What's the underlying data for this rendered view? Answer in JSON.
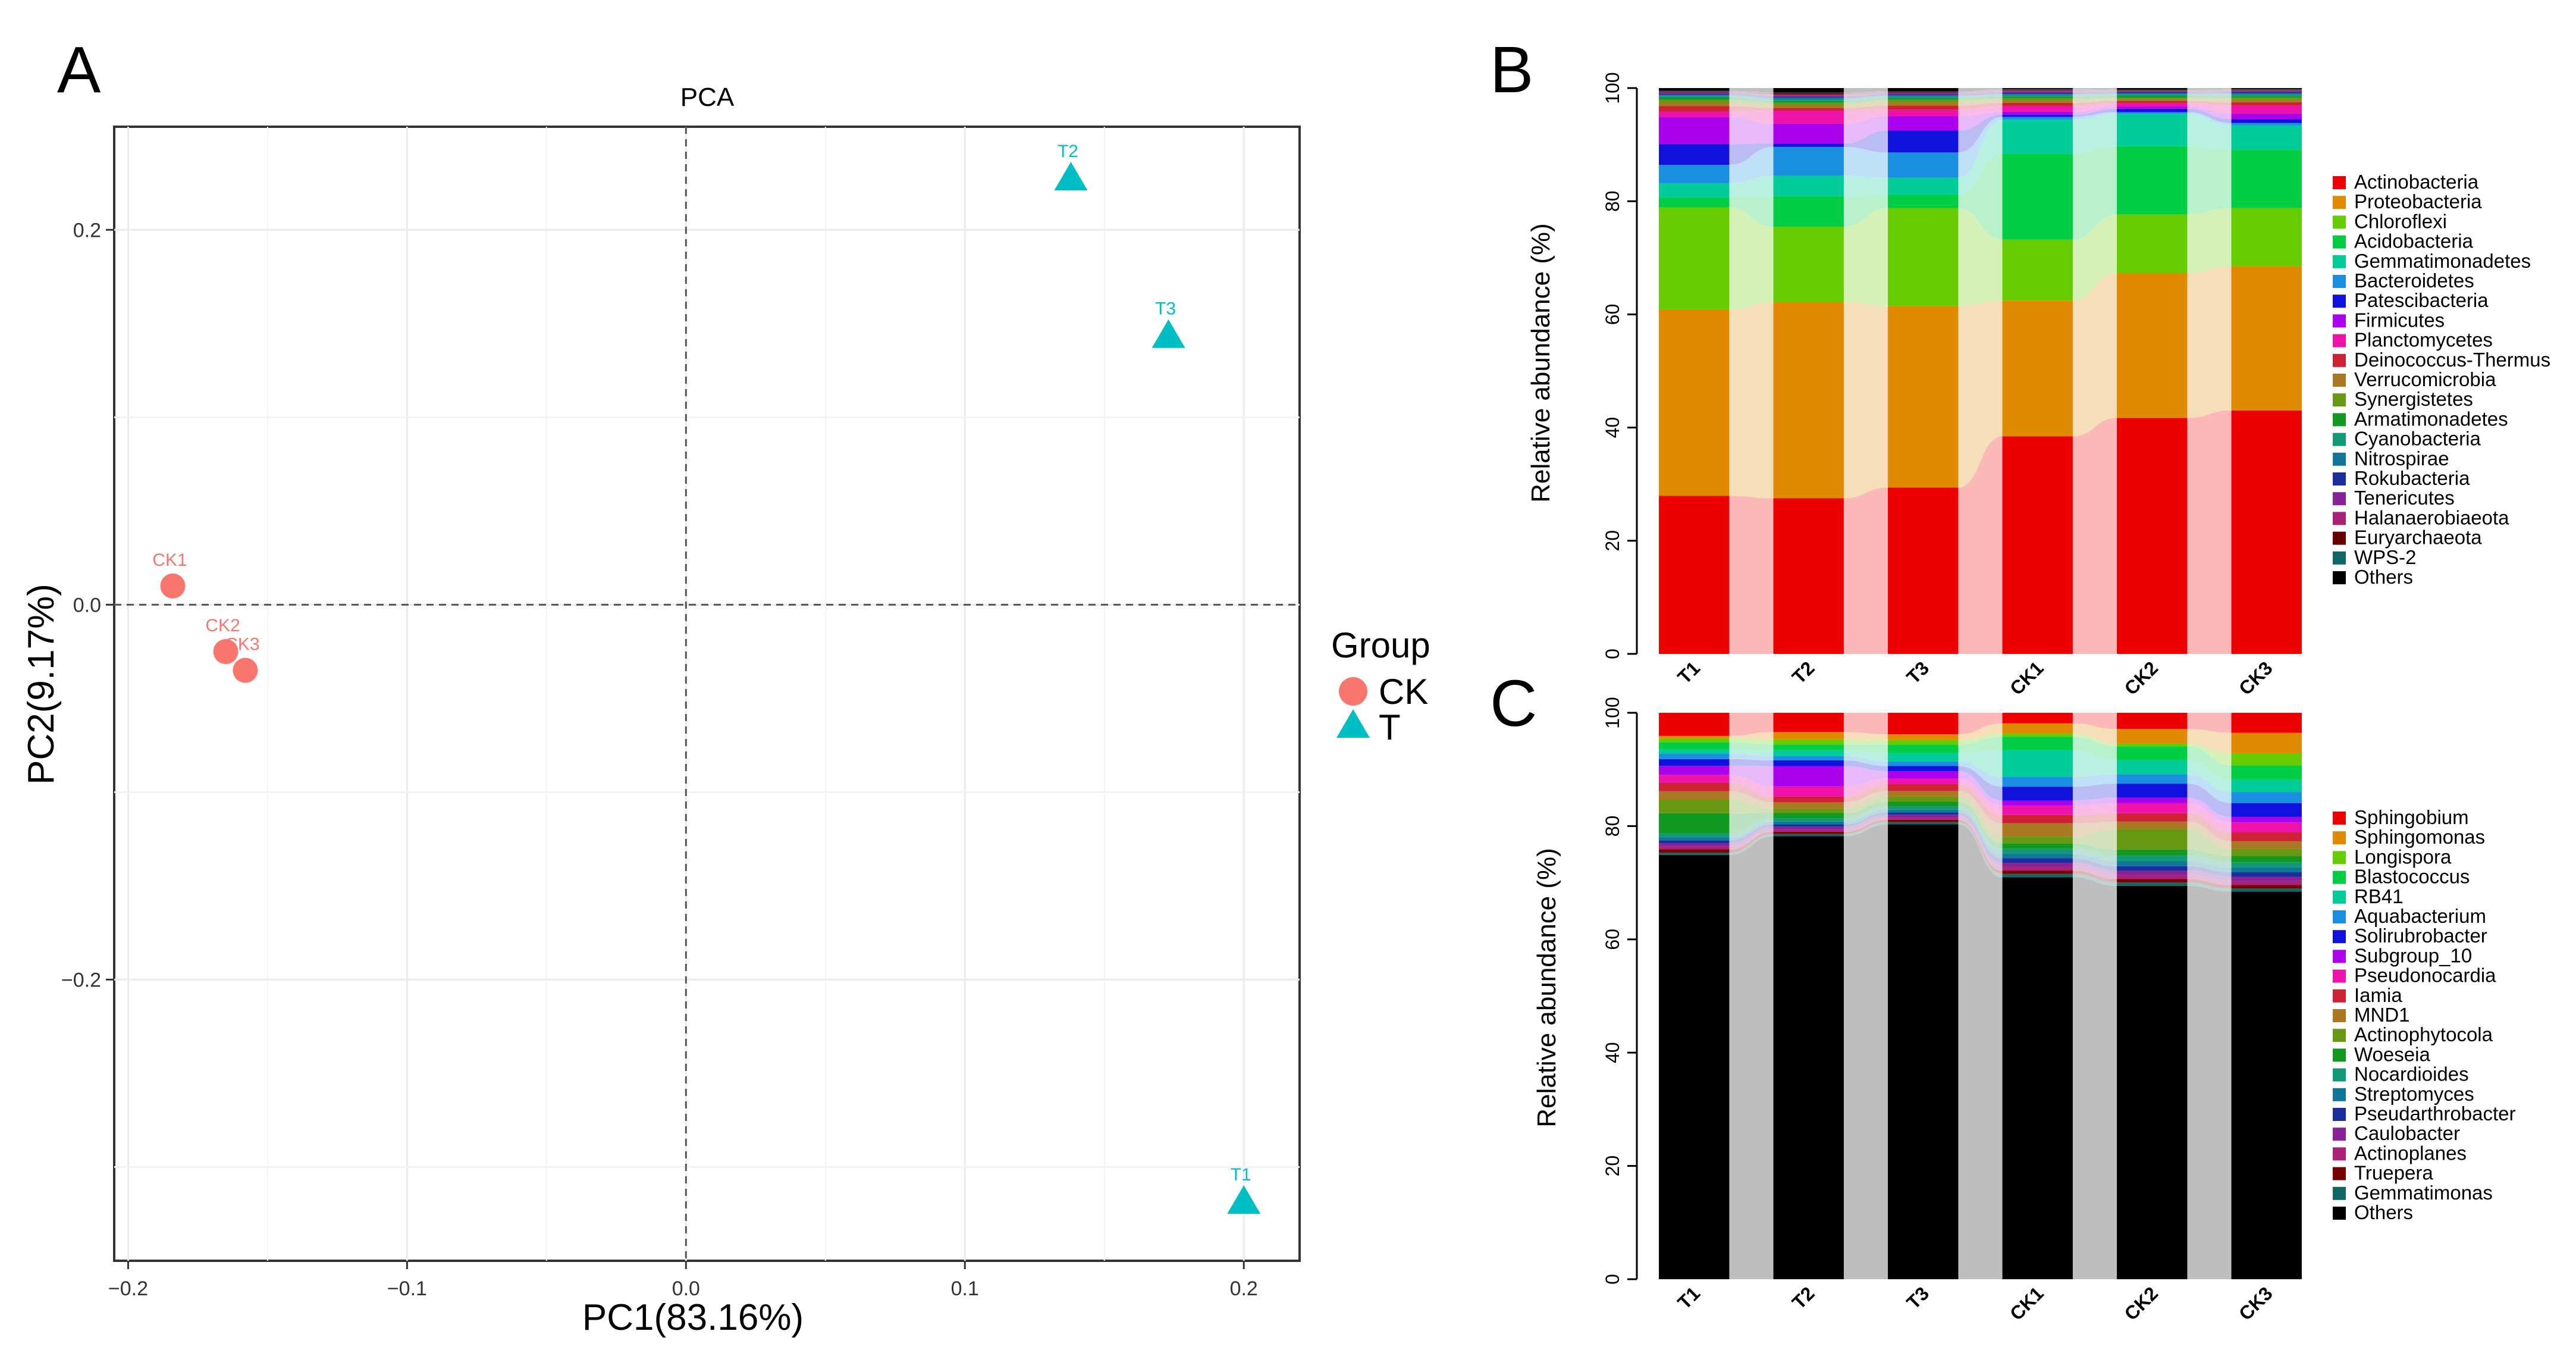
{
  "panel_labels": {
    "a": "A",
    "b": "B",
    "c": "C"
  },
  "chart_data": [
    {
      "type": "scatter",
      "panel": "A",
      "title": "PCA",
      "xlabel": "PC1(83.16%)",
      "ylabel": "PC2(9.17%)",
      "xlim": [
        -0.205,
        0.22
      ],
      "ylim": [
        -0.35,
        0.255
      ],
      "xticks": [
        -0.2,
        -0.1,
        0.0,
        0.1,
        0.2
      ],
      "xtick_labels": [
        "-0.2",
        "-0.1",
        "0.0",
        "0.1",
        "0.2"
      ],
      "yticks": [
        -0.2,
        0.0,
        0.2
      ],
      "ytick_labels": [
        "-0.2",
        "0.0",
        "0.2"
      ],
      "grid": true,
      "zero_lines": true,
      "legend_title": "Group",
      "legend": [
        {
          "label": "CK",
          "color": "#f8766d",
          "shape": "circle"
        },
        {
          "label": "T",
          "color": "#00bfc4",
          "shape": "triangle"
        }
      ],
      "points": [
        {
          "label": "CK1",
          "group": "CK",
          "x": -0.184,
          "y": 0.01
        },
        {
          "label": "CK2",
          "group": "CK",
          "x": -0.165,
          "y": -0.025
        },
        {
          "label": "CK3",
          "group": "CK",
          "x": -0.158,
          "y": -0.035
        },
        {
          "label": "T2",
          "group": "T",
          "x": 0.138,
          "y": 0.228
        },
        {
          "label": "T3",
          "group": "T",
          "x": 0.173,
          "y": 0.144
        },
        {
          "label": "T1",
          "group": "T",
          "x": 0.2,
          "y": -0.318
        }
      ]
    },
    {
      "type": "bar",
      "stacked": true,
      "panel": "B",
      "ylabel": "Relative abundance (%)",
      "ylim": [
        0,
        100
      ],
      "yticks": [
        0,
        20,
        40,
        60,
        80,
        100
      ],
      "ytick_labels": [
        "0",
        "20",
        "40",
        "60",
        "80",
        "100"
      ],
      "categories": [
        "T1",
        "T2",
        "T3",
        "CK1",
        "CK2",
        "CK3"
      ],
      "series": [
        {
          "name": "Actinobacteria",
          "color": "#ee0000",
          "values": [
            28.2,
            27.5,
            29.7,
            38.5,
            42.2,
            43.2
          ]
        },
        {
          "name": "Proteobacteria",
          "color": "#e08a00",
          "values": [
            33.3,
            34.7,
            32.4,
            24.0,
            25.9,
            25.6
          ]
        },
        {
          "name": "Chloroflexi",
          "color": "#66cc00",
          "values": [
            18.2,
            13.3,
            17.5,
            10.8,
            10.5,
            10.3
          ]
        },
        {
          "name": "Acidobacteria",
          "color": "#00cc44",
          "values": [
            1.8,
            5.4,
            2.4,
            15.2,
            12.2,
            10.4
          ]
        },
        {
          "name": "Gemmatimonadetes",
          "color": "#00cc99",
          "values": [
            2.5,
            3.6,
            3.0,
            6.0,
            5.8,
            4.3
          ]
        },
        {
          "name": "Bacteroidetes",
          "color": "#1a8fe0",
          "values": [
            3.3,
            5.1,
            4.5,
            0.5,
            0.3,
            0.4
          ]
        },
        {
          "name": "Patescibacteria",
          "color": "#1111dd",
          "values": [
            3.7,
            0.6,
            3.9,
            0.4,
            0.6,
            0.7
          ]
        },
        {
          "name": "Firmicutes",
          "color": "#aa00ee",
          "values": [
            4.8,
            3.5,
            2.6,
            0.5,
            0.4,
            1.0
          ]
        },
        {
          "name": "Planctomycetes",
          "color": "#ee11aa",
          "values": [
            1.0,
            2.3,
            1.1,
            1.0,
            0.6,
            1.4
          ]
        },
        {
          "name": "Deinococcus-Thermus",
          "color": "#cc2233",
          "values": [
            1.0,
            0.5,
            0.8,
            0.6,
            0.4,
            0.6
          ]
        },
        {
          "name": "Verrucomicrobia",
          "color": "#aa7722",
          "values": [
            0.6,
            0.5,
            0.6,
            0.4,
            0.3,
            0.4
          ]
        },
        {
          "name": "Synergistetes",
          "color": "#669911",
          "values": [
            0.5,
            0.4,
            0.4,
            0.4,
            0.3,
            0.4
          ]
        },
        {
          "name": "Armatimonadetes",
          "color": "#119922",
          "values": [
            0.4,
            0.3,
            0.3,
            0.3,
            0.3,
            0.3
          ]
        },
        {
          "name": "Cyanobacteria",
          "color": "#119977",
          "values": [
            0.3,
            0.3,
            0.3,
            0.3,
            0.3,
            0.3
          ]
        },
        {
          "name": "Nitrospirae",
          "color": "#117799",
          "values": [
            0.2,
            0.3,
            0.2,
            0.2,
            0.2,
            0.2
          ]
        },
        {
          "name": "Rokubacteria",
          "color": "#1a2f9c",
          "values": [
            0.2,
            0.2,
            0.2,
            0.2,
            0.2,
            0.2
          ]
        },
        {
          "name": "Tenericutes",
          "color": "#882299",
          "values": [
            0.2,
            0.2,
            0.2,
            0.2,
            0.1,
            0.2
          ]
        },
        {
          "name": "Halanaerobiaeota",
          "color": "#aa2277",
          "values": [
            0.1,
            0.2,
            0.1,
            0.2,
            0.1,
            0.1
          ]
        },
        {
          "name": "Euryarchaeota",
          "color": "#660000",
          "values": [
            0.1,
            0.2,
            0.1,
            0.1,
            0.1,
            0.1
          ]
        },
        {
          "name": "WPS-2",
          "color": "#116666",
          "values": [
            0.1,
            0.1,
            0.1,
            0.1,
            0.1,
            0.1
          ]
        },
        {
          "name": "Others",
          "color": "#000000",
          "values": [
            0.5,
            0.8,
            0.6,
            0.2,
            0.3,
            0.2
          ]
        }
      ]
    },
    {
      "type": "bar",
      "stacked": true,
      "panel": "C",
      "ylabel": "Relative abundance (%)",
      "ylim": [
        0,
        100
      ],
      "yticks": [
        0,
        20,
        40,
        60,
        80,
        100
      ],
      "ytick_labels": [
        "0",
        "20",
        "40",
        "60",
        "80",
        "100"
      ],
      "categories": [
        "T1",
        "T2",
        "T3",
        "CK1",
        "CK2",
        "CK3"
      ],
      "series": [
        {
          "name": "Others",
          "color": "#000000",
          "values": [
            75.2,
            78.2,
            80.3,
            72.4,
            70.5,
            70.0
          ]
        },
        {
          "name": "Gemmatimonas",
          "color": "#116666",
          "values": [
            0.4,
            0.4,
            0.4,
            0.6,
            0.6,
            0.6
          ]
        },
        {
          "name": "Truepera",
          "color": "#770000",
          "values": [
            0.6,
            0.4,
            0.4,
            0.6,
            0.6,
            0.6
          ]
        },
        {
          "name": "Actinoplanes",
          "color": "#aa2277",
          "values": [
            0.5,
            0.4,
            0.4,
            0.7,
            0.7,
            0.7
          ]
        },
        {
          "name": "Caulobacter",
          "color": "#882299",
          "values": [
            0.6,
            0.5,
            0.5,
            0.7,
            0.8,
            0.8
          ]
        },
        {
          "name": "Pseudarthrobacter",
          "color": "#1a2f9c",
          "values": [
            0.5,
            0.4,
            0.4,
            0.8,
            0.8,
            0.8
          ]
        },
        {
          "name": "Streptomyces",
          "color": "#117799",
          "values": [
            0.5,
            0.5,
            0.5,
            0.8,
            0.9,
            0.9
          ]
        },
        {
          "name": "Nocardioides",
          "color": "#119977",
          "values": [
            0.7,
            0.6,
            0.6,
            0.9,
            1.0,
            0.9
          ]
        },
        {
          "name": "Woeseia",
          "color": "#119922",
          "values": [
            3.6,
            0.9,
            0.8,
            1.0,
            1.1,
            1.1
          ]
        },
        {
          "name": "Actinophytocola",
          "color": "#669911",
          "values": [
            2.4,
            0.8,
            0.9,
            1.2,
            3.7,
            1.3
          ]
        },
        {
          "name": "MND1",
          "color": "#aa7722",
          "values": [
            1.5,
            1.1,
            1.0,
            2.4,
            1.3,
            1.4
          ]
        },
        {
          "name": "Iamia",
          "color": "#cc2233",
          "values": [
            1.5,
            1.0,
            1.2,
            1.5,
            1.5,
            1.6
          ]
        },
        {
          "name": "Pseudonocardia",
          "color": "#ee11aa",
          "values": [
            1.4,
            1.8,
            1.0,
            1.7,
            1.8,
            1.8
          ]
        },
        {
          "name": "Subgroup_10",
          "color": "#aa00ee",
          "values": [
            1.6,
            3.6,
            1.3,
            0.9,
            1.0,
            1.0
          ]
        },
        {
          "name": "Solirubrobacter",
          "color": "#1111dd",
          "values": [
            1.2,
            1.0,
            0.9,
            2.5,
            2.5,
            2.5
          ]
        },
        {
          "name": "Aquabacterium",
          "color": "#1a8fe0",
          "values": [
            1.0,
            0.8,
            0.8,
            1.8,
            1.7,
            2.0
          ]
        },
        {
          "name": "RB41",
          "color": "#00cc99",
          "values": [
            0.7,
            1.0,
            1.5,
            4.8,
            2.5,
            2.2
          ]
        },
        {
          "name": "Blastococcus",
          "color": "#00cc44",
          "values": [
            1.3,
            1.0,
            1.5,
            2.4,
            2.5,
            2.6
          ]
        },
        {
          "name": "Longispora",
          "color": "#66cc00",
          "values": [
            0.7,
            0.9,
            0.8,
            0.6,
            0.5,
            2.2
          ]
        },
        {
          "name": "Sphingomonas",
          "color": "#e08a00",
          "values": [
            0.4,
            1.3,
            1.0,
            1.8,
            2.6,
            3.7
          ]
        },
        {
          "name": "Sphingobium",
          "color": "#ee0000",
          "values": [
            4.1,
            3.4,
            3.8,
            1.9,
            2.9,
            3.6
          ]
        }
      ],
      "legend_order": [
        "Sphingobium",
        "Sphingomonas",
        "Longispora",
        "Blastococcus",
        "RB41",
        "Aquabacterium",
        "Solirubrobacter",
        "Subgroup_10",
        "Pseudonocardia",
        "Iamia",
        "MND1",
        "Actinophytocola",
        "Woeseia",
        "Nocardioides",
        "Streptomyces",
        "Pseudarthrobacter",
        "Caulobacter",
        "Actinoplanes",
        "Truepera",
        "Gemmatimonas",
        "Others"
      ]
    }
  ]
}
